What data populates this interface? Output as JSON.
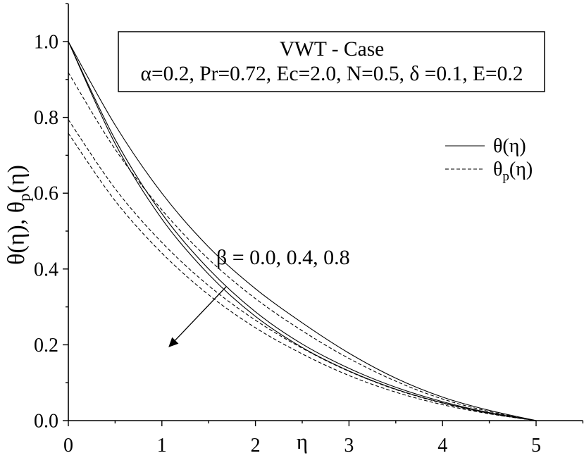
{
  "chart_data": {
    "type": "line",
    "title": "VWT - Case",
    "subtitle": "α=0.2, Pr=0.72, Ec=2.0, N=0.5, δ =0.1, E=0.2",
    "xlabel": "η",
    "ylabel": {
      "main": "θ(η), θ",
      "sub": "p",
      "tail": "(η)"
    },
    "xlim": [
      0,
      5.5
    ],
    "ylim": [
      0,
      1.1
    ],
    "xticks": [
      {
        "value": 0,
        "label": "0"
      },
      {
        "value": 1,
        "label": "1"
      },
      {
        "value": 2,
        "label": "2"
      },
      {
        "value": 3,
        "label": "3"
      },
      {
        "value": 4,
        "label": "4"
      },
      {
        "value": 5,
        "label": "5"
      }
    ],
    "yticks": [
      {
        "value": 0.0,
        "label": "0.0"
      },
      {
        "value": 0.2,
        "label": "0.2"
      },
      {
        "value": 0.4,
        "label": "0.4"
      },
      {
        "value": 0.6,
        "label": "0.6"
      },
      {
        "value": 0.8,
        "label": "0.8"
      },
      {
        "value": 1.0,
        "label": "1.0"
      }
    ],
    "grid": false,
    "line_color": "#000000",
    "legend": {
      "placement": "right",
      "entries": [
        {
          "style": "solid",
          "main": "θ(η)"
        },
        {
          "style": "dashed",
          "main": "θ",
          "sub": "p",
          "tail": "(η)"
        }
      ]
    },
    "annotation": {
      "text": "β = 0.0, 0.4, 0.8"
    },
    "x": [
      0,
      0.5,
      1,
      1.5,
      2,
      2.5,
      3,
      3.5,
      4,
      4.5,
      5
    ],
    "series": [
      {
        "style": "solid",
        "values": [
          1.0,
          0.78,
          0.6,
          0.458,
          0.348,
          0.258,
          0.178,
          0.112,
          0.062,
          0.027,
          0.0
        ]
      },
      {
        "style": "solid",
        "values": [
          1.0,
          0.742,
          0.546,
          0.4,
          0.287,
          0.202,
          0.138,
          0.088,
          0.05,
          0.021,
          0.0
        ]
      },
      {
        "style": "solid",
        "values": [
          1.0,
          0.731,
          0.532,
          0.386,
          0.275,
          0.193,
          0.131,
          0.083,
          0.047,
          0.02,
          0.0
        ]
      },
      {
        "style": "dashed",
        "values": [
          0.918,
          0.716,
          0.556,
          0.426,
          0.322,
          0.237,
          0.164,
          0.104,
          0.057,
          0.024,
          0.0
        ]
      },
      {
        "style": "dashed",
        "values": [
          0.794,
          0.612,
          0.47,
          0.356,
          0.265,
          0.191,
          0.13,
          0.082,
          0.046,
          0.019,
          0.0
        ]
      },
      {
        "style": "dashed",
        "values": [
          0.758,
          0.58,
          0.442,
          0.332,
          0.245,
          0.176,
          0.119,
          0.075,
          0.042,
          0.018,
          0.0
        ]
      }
    ]
  }
}
